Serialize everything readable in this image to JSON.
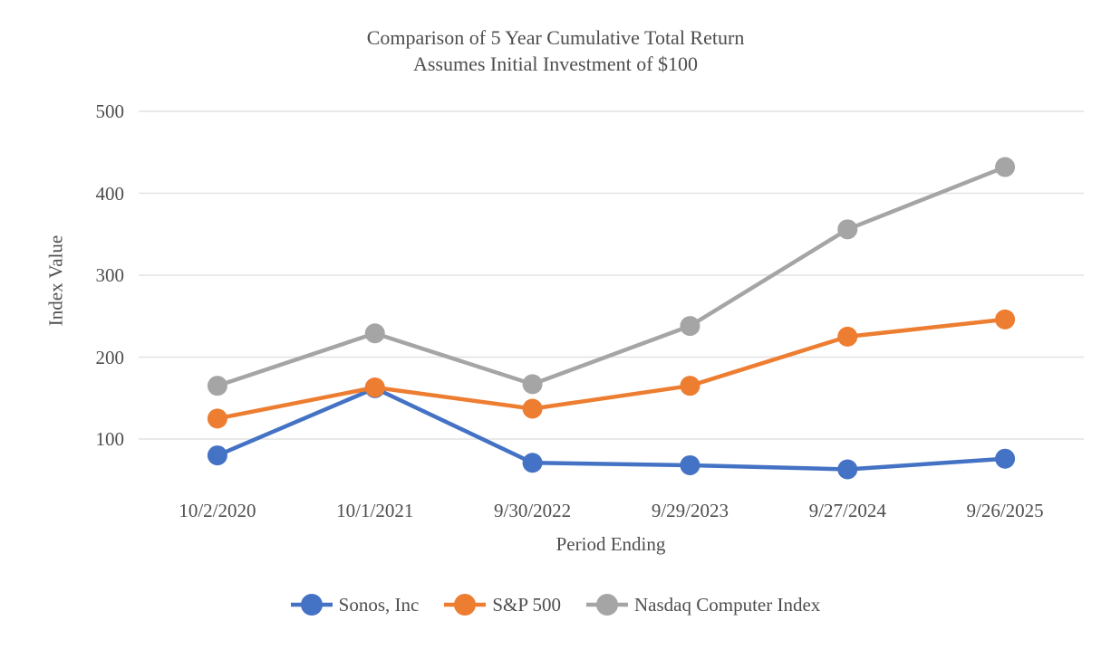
{
  "chart": {
    "title_line1": "Comparison of 5 Year Cumulative Total Return",
    "title_line2": "Assumes Initial Investment of $100",
    "ylabel": "Index Value",
    "xlabel": "Period Ending"
  },
  "chart_data": {
    "type": "line",
    "title": "Comparison of 5 Year Cumulative Total Return",
    "subtitle": "Assumes Initial Investment of $100",
    "xlabel": "Period Ending",
    "ylabel": "Index Value",
    "categories": [
      "10/2/2020",
      "10/1/2021",
      "9/30/2022",
      "9/29/2023",
      "9/27/2024",
      "9/26/2025"
    ],
    "series": [
      {
        "name": "Sonos, Inc",
        "color": "#4472C4",
        "values": [
          80,
          162,
          71,
          68,
          63,
          76
        ]
      },
      {
        "name": "S&P 500",
        "color": "#ED7D31",
        "values": [
          125,
          163,
          137,
          165,
          225,
          246
        ]
      },
      {
        "name": "Nasdaq Computer Index",
        "color": "#A5A5A5",
        "values": [
          165,
          229,
          167,
          238,
          356,
          432
        ]
      }
    ],
    "yticks": [
      100,
      200,
      300,
      400,
      500
    ],
    "ylim": [
      50,
      540
    ],
    "grid": "horizontal",
    "gridline_color": "#e2e2e2",
    "legend_position": "bottom",
    "marker": "circle"
  },
  "colors": {
    "text": "#4e4e4e",
    "background": "#ffffff"
  }
}
